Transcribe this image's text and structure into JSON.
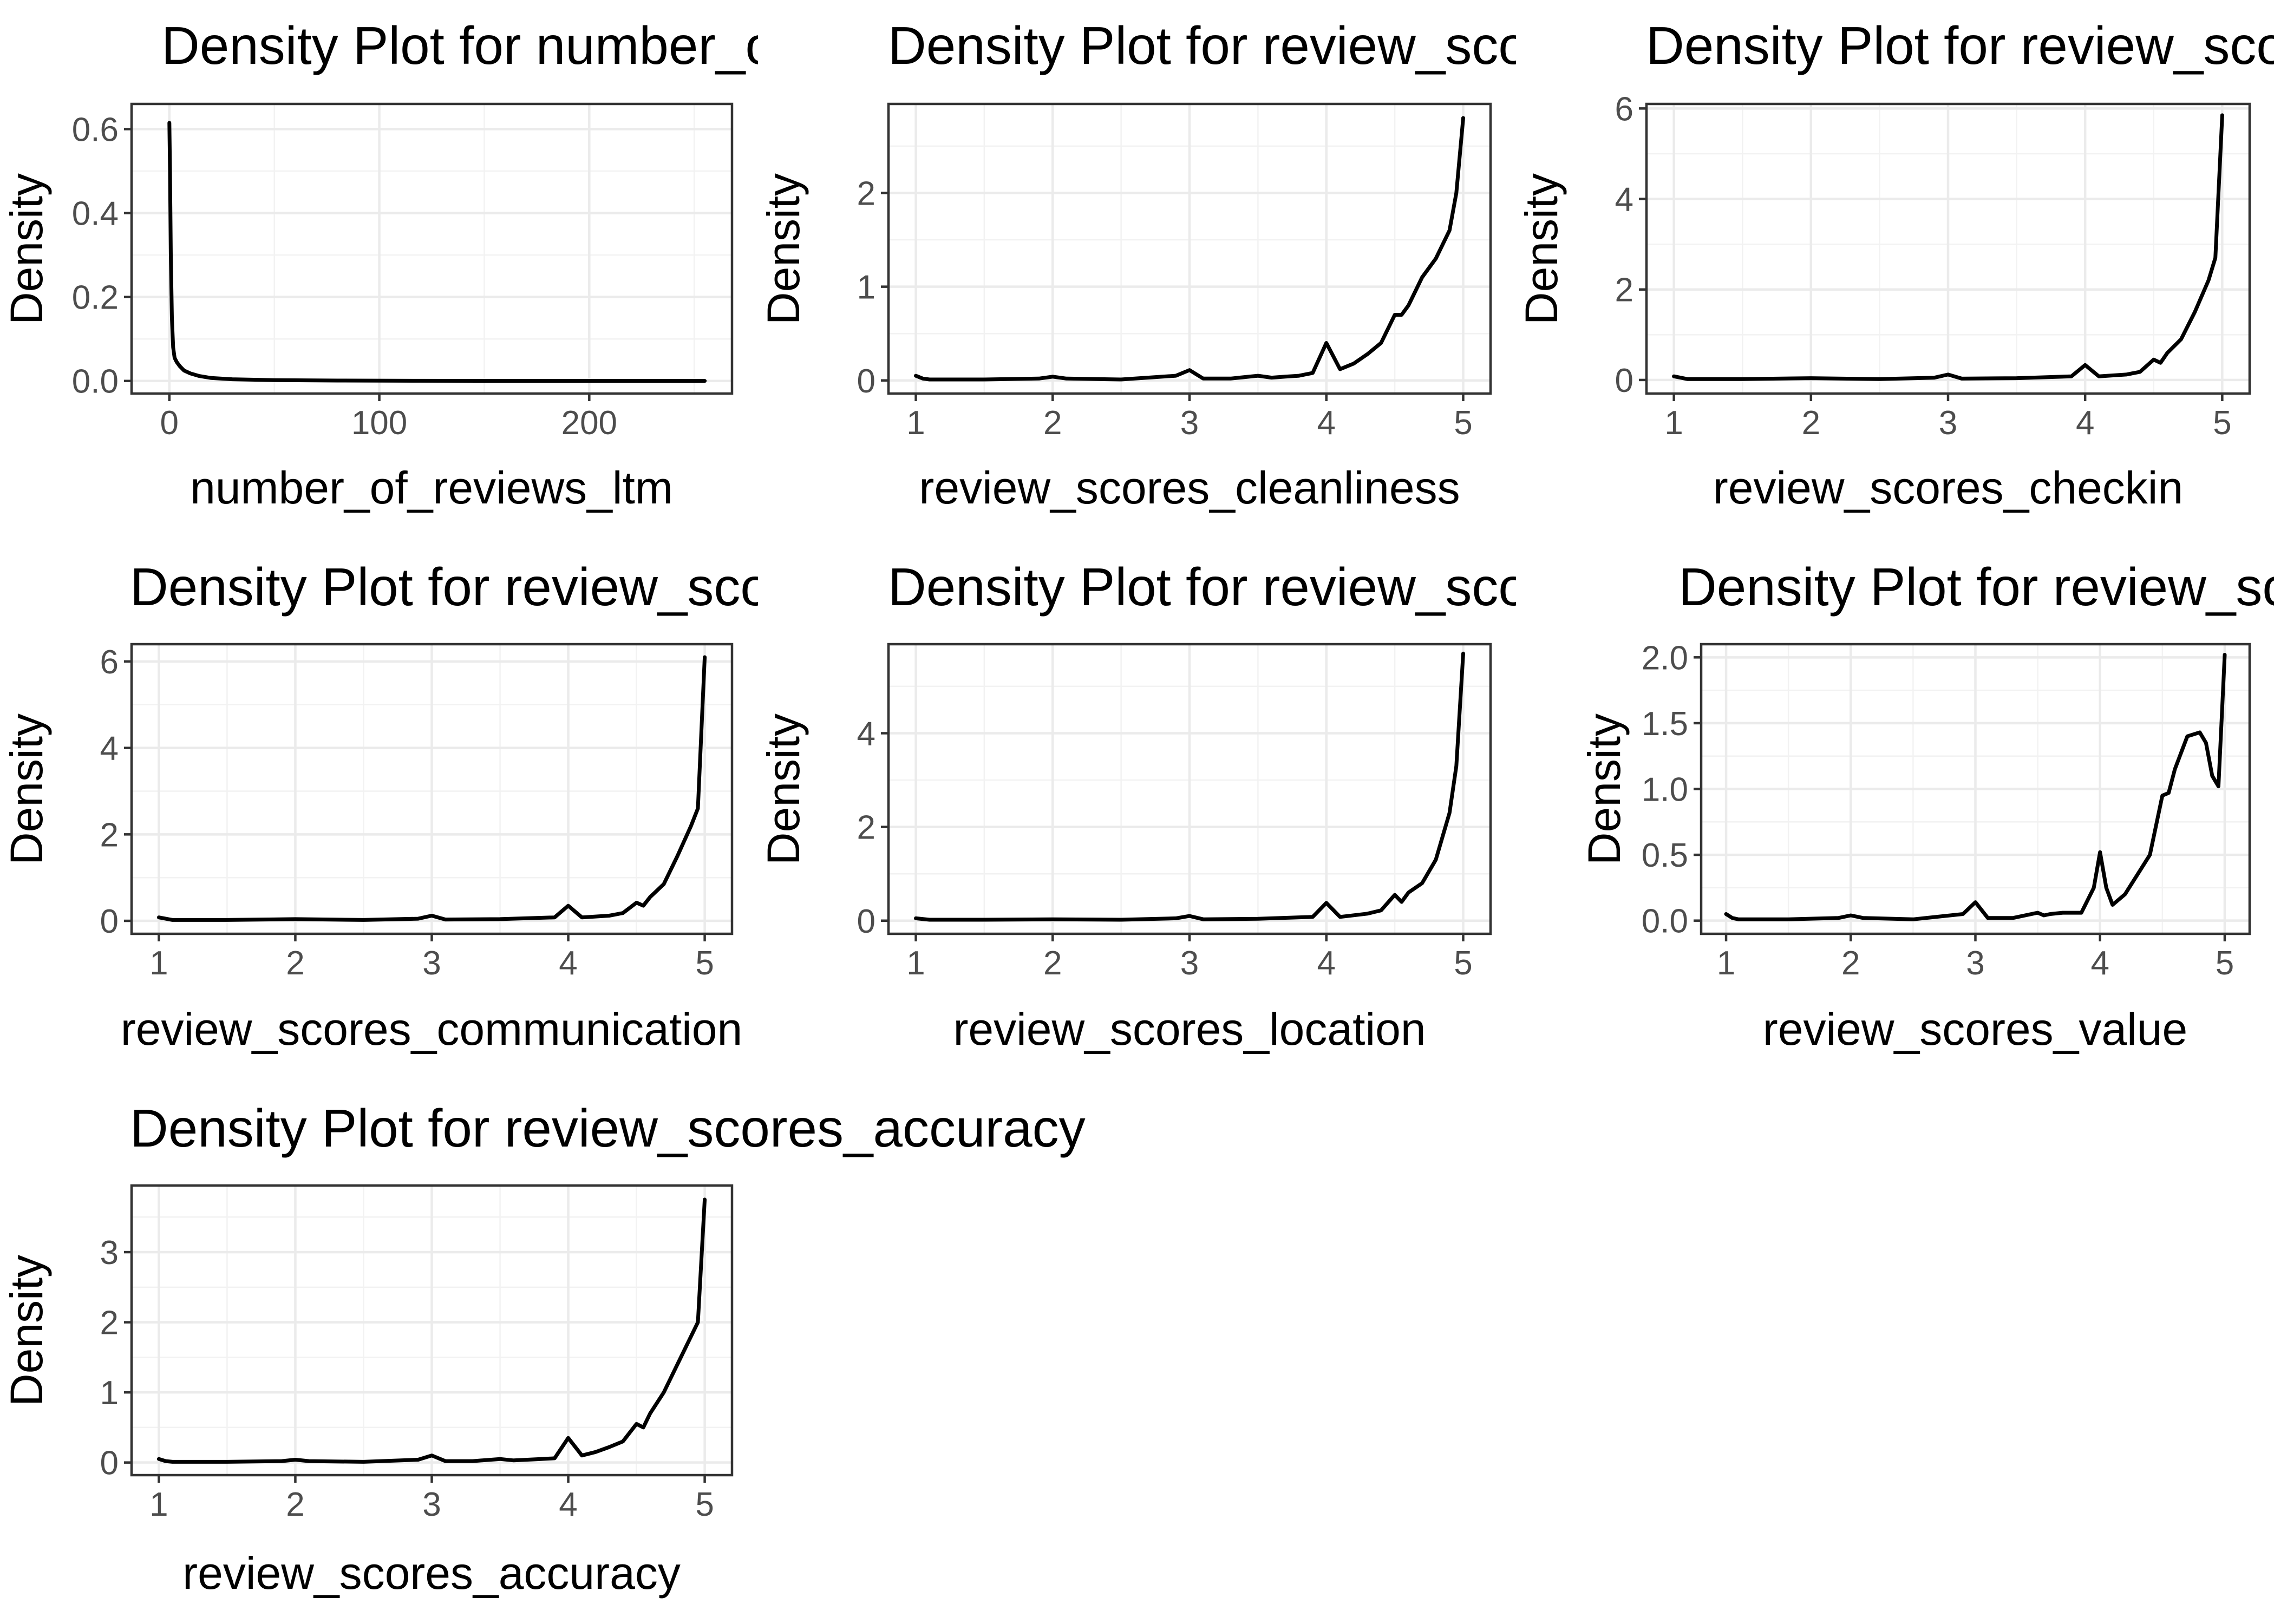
{
  "chart_data": [
    {
      "type": "line",
      "title": "Density Plot for  number_of_reviews_ltm",
      "xlabel": "number_of_reviews_ltm",
      "ylabel": "Density",
      "xlim": [
        -18,
        268
      ],
      "ylim": [
        -0.03,
        0.66
      ],
      "xticks": [
        0,
        100,
        200
      ],
      "xtick_labels": [
        "0",
        "100",
        "200"
      ],
      "yticks": [
        0,
        0.2,
        0.4,
        0.6
      ],
      "ytick_labels": [
        "0.0",
        "0.2",
        "0.4",
        "0.6"
      ],
      "grid": true,
      "x": [
        0,
        0.3,
        0.7,
        1.2,
        1.8,
        2.5,
        3.5,
        5,
        7,
        10,
        14,
        20,
        30,
        50,
        80,
        120,
        180,
        255
      ],
      "y": [
        0.615,
        0.5,
        0.3,
        0.15,
        0.08,
        0.055,
        0.045,
        0.035,
        0.025,
        0.018,
        0.012,
        0.007,
        0.004,
        0.002,
        0.001,
        0.0005,
        0.0003,
        0.0002
      ]
    },
    {
      "type": "line",
      "title": "Density Plot for  review_scores_cleanliness",
      "xlabel": "review_scores_cleanliness",
      "ylabel": "Density",
      "xlim": [
        0.8,
        5.2
      ],
      "ylim": [
        -0.14,
        2.95
      ],
      "xticks": [
        1,
        2,
        3,
        4,
        5
      ],
      "xtick_labels": [
        "1",
        "2",
        "3",
        "4",
        "5"
      ],
      "yticks": [
        0,
        1,
        2
      ],
      "ytick_labels": [
        "0",
        "1",
        "2"
      ],
      "grid": true,
      "x": [
        1,
        1.05,
        1.1,
        1.5,
        1.9,
        2,
        2.1,
        2.5,
        2.9,
        3,
        3.1,
        3.3,
        3.5,
        3.6,
        3.7,
        3.8,
        3.9,
        4.0,
        4.1,
        4.2,
        4.3,
        4.4,
        4.5,
        4.55,
        4.6,
        4.7,
        4.8,
        4.9,
        4.95,
        5.0
      ],
      "y": [
        0.05,
        0.02,
        0.01,
        0.01,
        0.02,
        0.04,
        0.02,
        0.01,
        0.05,
        0.11,
        0.02,
        0.02,
        0.05,
        0.03,
        0.04,
        0.05,
        0.08,
        0.4,
        0.12,
        0.18,
        0.28,
        0.4,
        0.7,
        0.7,
        0.8,
        1.1,
        1.3,
        1.6,
        2.0,
        2.8
      ]
    },
    {
      "type": "line",
      "title": "Density Plot for  review_scores_checkin",
      "xlabel": "review_scores_checkin",
      "ylabel": "Density",
      "xlim": [
        0.8,
        5.2
      ],
      "ylim": [
        -0.3,
        6.1
      ],
      "xticks": [
        1,
        2,
        3,
        4,
        5
      ],
      "xtick_labels": [
        "1",
        "2",
        "3",
        "4",
        "5"
      ],
      "yticks": [
        0,
        2,
        4,
        6
      ],
      "ytick_labels": [
        "0",
        "2",
        "4",
        "6"
      ],
      "grid": true,
      "x": [
        1,
        1.1,
        1.5,
        2,
        2.5,
        2.9,
        3,
        3.1,
        3.5,
        3.9,
        4.0,
        4.1,
        4.3,
        4.4,
        4.5,
        4.55,
        4.6,
        4.7,
        4.8,
        4.9,
        4.95,
        5.0
      ],
      "y": [
        0.08,
        0.02,
        0.02,
        0.04,
        0.02,
        0.05,
        0.12,
        0.03,
        0.04,
        0.08,
        0.33,
        0.08,
        0.12,
        0.18,
        0.45,
        0.38,
        0.6,
        0.9,
        1.5,
        2.2,
        2.7,
        5.85
      ]
    },
    {
      "type": "line",
      "title": "Density Plot for  review_scores_communication",
      "xlabel": "review_scores_communication",
      "ylabel": "Density",
      "xlim": [
        0.8,
        5.2
      ],
      "ylim": [
        -0.3,
        6.4
      ],
      "xticks": [
        1,
        2,
        3,
        4,
        5
      ],
      "xtick_labels": [
        "1",
        "2",
        "3",
        "4",
        "5"
      ],
      "yticks": [
        0,
        2,
        4,
        6
      ],
      "ytick_labels": [
        "0",
        "2",
        "4",
        "6"
      ],
      "grid": true,
      "x": [
        1,
        1.1,
        1.5,
        2,
        2.5,
        2.9,
        3,
        3.1,
        3.5,
        3.9,
        4.0,
        4.1,
        4.3,
        4.4,
        4.5,
        4.55,
        4.6,
        4.7,
        4.8,
        4.9,
        4.95,
        5.0
      ],
      "y": [
        0.08,
        0.02,
        0.02,
        0.04,
        0.02,
        0.05,
        0.12,
        0.03,
        0.04,
        0.08,
        0.35,
        0.08,
        0.12,
        0.18,
        0.42,
        0.35,
        0.55,
        0.85,
        1.5,
        2.2,
        2.6,
        6.1
      ]
    },
    {
      "type": "line",
      "title": "Density Plot for  review_scores_location",
      "xlabel": "review_scores_location",
      "ylabel": "Density",
      "xlim": [
        0.8,
        5.2
      ],
      "ylim": [
        -0.28,
        5.9
      ],
      "xticks": [
        1,
        2,
        3,
        4,
        5
      ],
      "xtick_labels": [
        "1",
        "2",
        "3",
        "4",
        "5"
      ],
      "yticks": [
        0,
        2,
        4
      ],
      "ytick_labels": [
        "0",
        "2",
        "4"
      ],
      "grid": true,
      "x": [
        1,
        1.1,
        1.5,
        2,
        2.5,
        2.9,
        3,
        3.1,
        3.5,
        3.9,
        4.0,
        4.1,
        4.3,
        4.4,
        4.5,
        4.55,
        4.6,
        4.7,
        4.8,
        4.9,
        4.95,
        5.0
      ],
      "y": [
        0.05,
        0.02,
        0.02,
        0.03,
        0.02,
        0.05,
        0.1,
        0.03,
        0.04,
        0.08,
        0.38,
        0.08,
        0.15,
        0.22,
        0.55,
        0.4,
        0.6,
        0.8,
        1.3,
        2.3,
        3.3,
        5.7
      ]
    },
    {
      "type": "line",
      "title": "Density Plot for  review_scores_value",
      "xlabel": "review_scores_value",
      "ylabel": "Density",
      "xlim": [
        0.8,
        5.2
      ],
      "ylim": [
        -0.1,
        2.1
      ],
      "xticks": [
        1,
        2,
        3,
        4,
        5
      ],
      "xtick_labels": [
        "1",
        "2",
        "3",
        "4",
        "5"
      ],
      "yticks": [
        0,
        0.5,
        1,
        1.5,
        2
      ],
      "ytick_labels": [
        "0.0",
        "0.5",
        "1.0",
        "1.5",
        "2.0"
      ],
      "grid": true,
      "x": [
        1,
        1.05,
        1.1,
        1.5,
        1.9,
        2,
        2.1,
        2.5,
        2.9,
        3,
        3.1,
        3.3,
        3.5,
        3.55,
        3.6,
        3.7,
        3.85,
        3.95,
        4.0,
        4.05,
        4.1,
        4.2,
        4.3,
        4.4,
        4.5,
        4.55,
        4.6,
        4.7,
        4.8,
        4.85,
        4.9,
        4.95,
        5.0
      ],
      "y": [
        0.05,
        0.02,
        0.01,
        0.01,
        0.02,
        0.04,
        0.02,
        0.01,
        0.05,
        0.14,
        0.02,
        0.02,
        0.06,
        0.04,
        0.05,
        0.06,
        0.06,
        0.25,
        0.52,
        0.25,
        0.12,
        0.2,
        0.35,
        0.5,
        0.95,
        0.97,
        1.15,
        1.4,
        1.43,
        1.35,
        1.1,
        1.02,
        2.02
      ]
    },
    {
      "type": "line",
      "title": "Density Plot for  review_scores_accuracy",
      "xlabel": "review_scores_accuracy",
      "ylabel": "Density",
      "xlim": [
        0.8,
        5.2
      ],
      "ylim": [
        -0.18,
        3.95
      ],
      "xticks": [
        1,
        2,
        3,
        4,
        5
      ],
      "xtick_labels": [
        "1",
        "2",
        "3",
        "4",
        "5"
      ],
      "yticks": [
        0,
        1,
        2,
        3
      ],
      "ytick_labels": [
        "0",
        "1",
        "2",
        "3"
      ],
      "grid": true,
      "x": [
        1,
        1.05,
        1.1,
        1.5,
        1.9,
        2,
        2.1,
        2.5,
        2.9,
        3,
        3.1,
        3.3,
        3.5,
        3.6,
        3.7,
        3.8,
        3.9,
        4.0,
        4.1,
        4.2,
        4.3,
        4.4,
        4.5,
        4.55,
        4.6,
        4.7,
        4.8,
        4.9,
        4.95,
        5.0
      ],
      "y": [
        0.05,
        0.02,
        0.01,
        0.01,
        0.02,
        0.04,
        0.02,
        0.01,
        0.04,
        0.1,
        0.02,
        0.02,
        0.05,
        0.03,
        0.04,
        0.05,
        0.06,
        0.35,
        0.1,
        0.15,
        0.22,
        0.3,
        0.55,
        0.5,
        0.7,
        1.0,
        1.4,
        1.8,
        2.0,
        3.75
      ]
    }
  ]
}
